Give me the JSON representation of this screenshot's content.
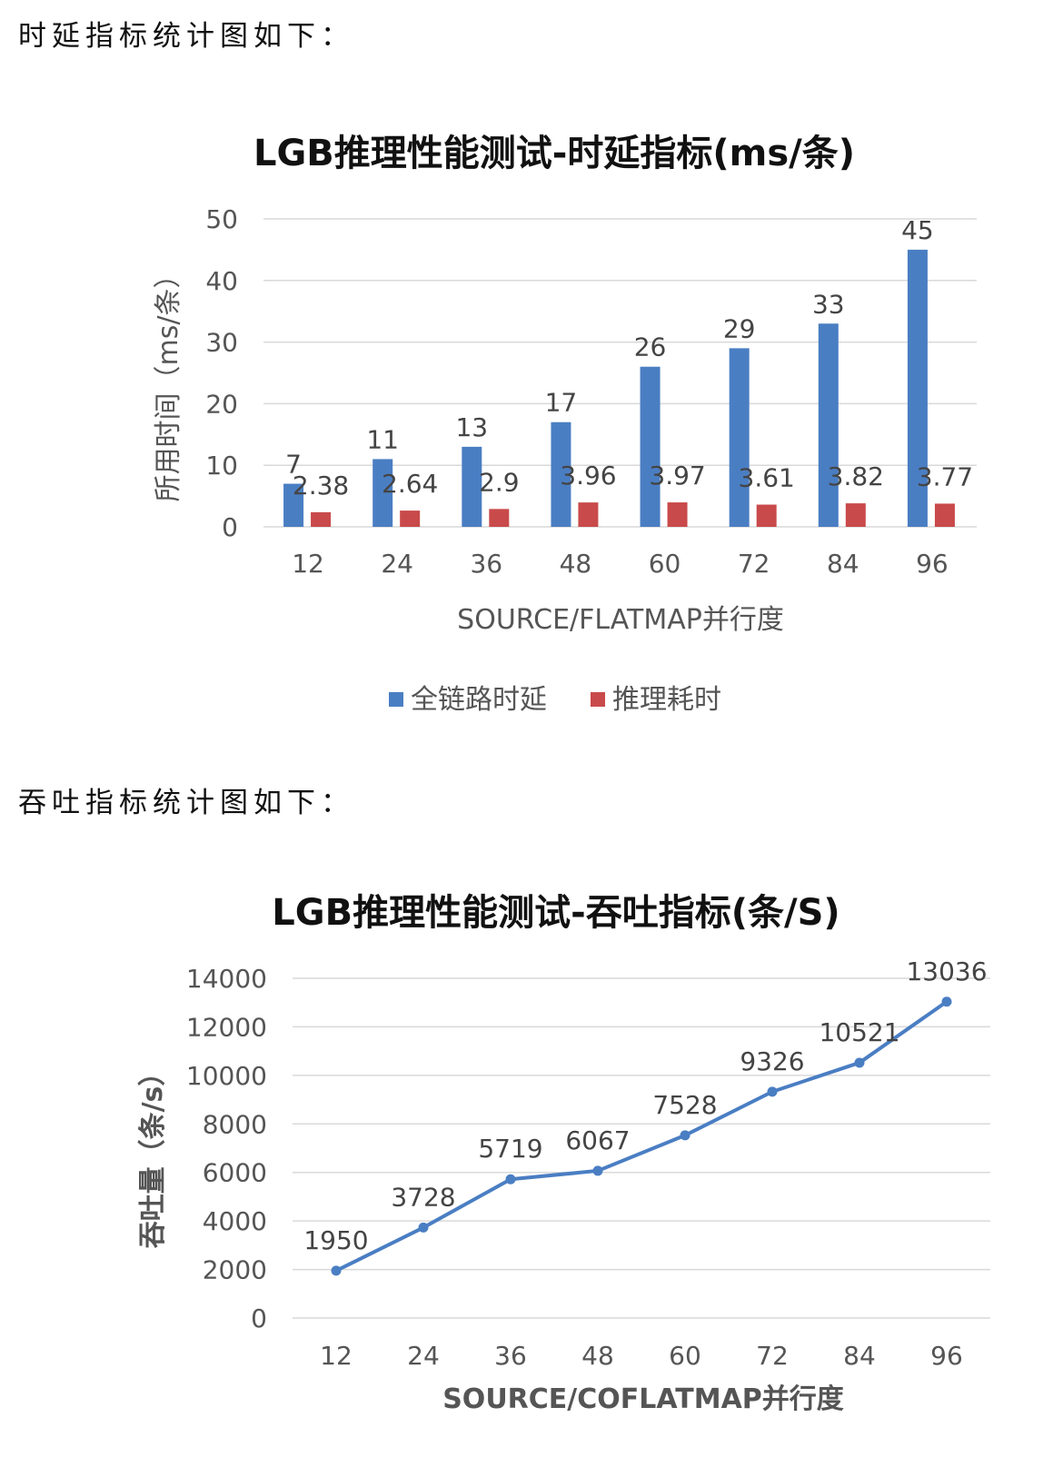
{
  "texts": {
    "intro_latency": "时延指标统计图如下：",
    "intro_throughput": "吞吐指标统计图如下："
  },
  "chart_data": [
    {
      "type": "bar",
      "title": "LGB推理性能测试-时延指标(ms/条)",
      "xlabel": "SOURCE/FLATMAP并行度",
      "ylabel": "所用时间（ms/条）",
      "categories": [
        "12",
        "24",
        "36",
        "48",
        "60",
        "72",
        "84",
        "96"
      ],
      "ylim": [
        0,
        50
      ],
      "yticks": [
        "0",
        "10",
        "20",
        "30",
        "40",
        "50"
      ],
      "grid": true,
      "legend_position": "bottom",
      "series": [
        {
          "name": "全链路时延",
          "color": "#4a7ec3",
          "values": [
            7,
            11,
            13,
            17,
            26,
            29,
            33,
            45
          ],
          "labels": [
            "7",
            "11",
            "13",
            "17",
            "26",
            "29",
            "33",
            "45"
          ]
        },
        {
          "name": "推理耗时",
          "color": "#c94a4a",
          "values": [
            2.38,
            2.64,
            2.9,
            3.96,
            3.97,
            3.61,
            3.82,
            3.77
          ],
          "labels": [
            "2.38",
            "2.64",
            "2.9",
            "3.96",
            "3.97",
            "3.61",
            "3.82",
            "3.77"
          ]
        }
      ]
    },
    {
      "type": "line",
      "title": "LGB推理性能测试-吞吐指标(条/S)",
      "xlabel": "SOURCE/COFLATMAP并行度",
      "ylabel": "吞吐量（条/s）",
      "categories": [
        "12",
        "24",
        "36",
        "48",
        "60",
        "72",
        "84",
        "96"
      ],
      "ylim": [
        0,
        14000
      ],
      "yticks": [
        "0",
        "2000",
        "4000",
        "6000",
        "8000",
        "10000",
        "12000",
        "14000"
      ],
      "grid": true,
      "series": [
        {
          "color": "#4a7ec3",
          "values": [
            1950,
            3728,
            5719,
            6067,
            7528,
            9326,
            10521,
            13036
          ],
          "labels": [
            "1950",
            "3728",
            "5719",
            "6067",
            "7528",
            "9326",
            "10521",
            "13036"
          ]
        }
      ]
    }
  ]
}
